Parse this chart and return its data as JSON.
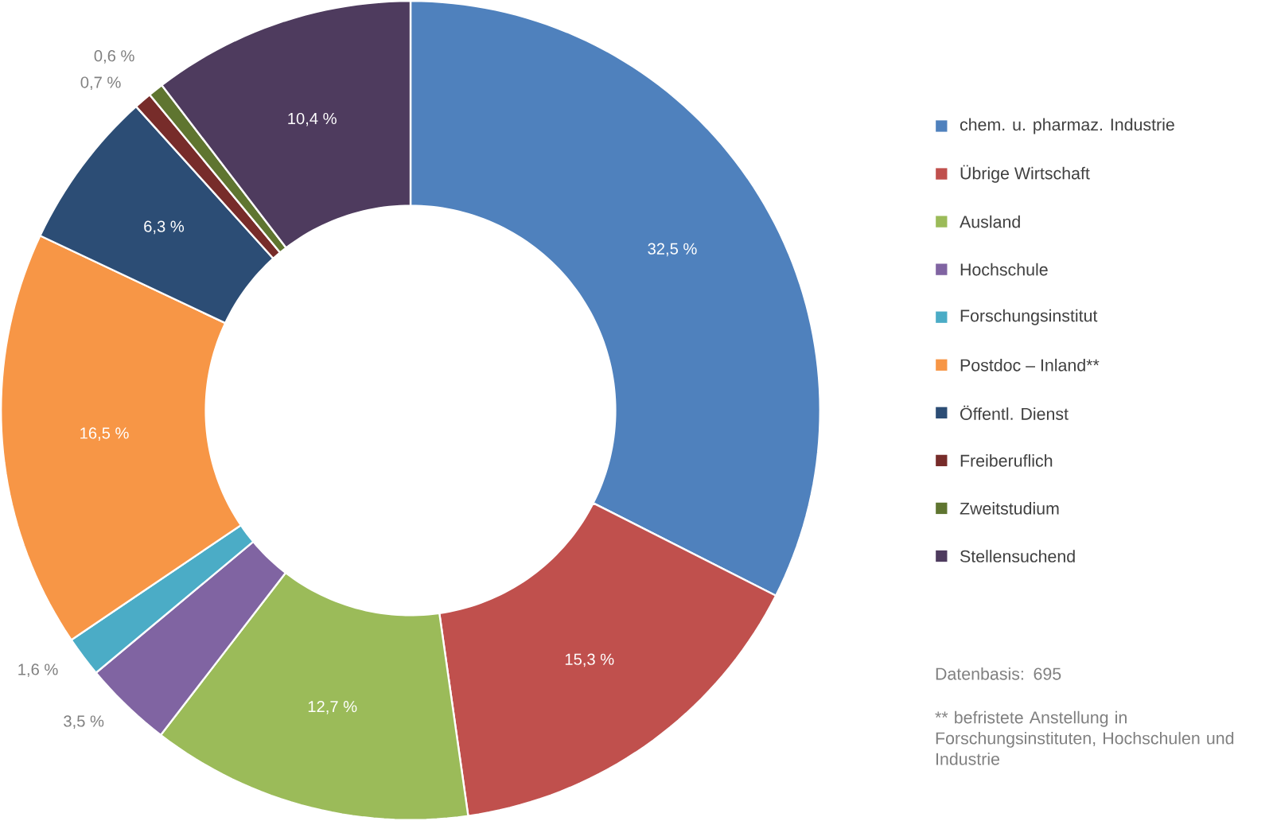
{
  "chart_data": {
    "type": "donut",
    "categories": [
      "chem. u. pharmaz. Industrie",
      "Übrige Wirtschaft",
      "Ausland",
      "Hochschule",
      "Forschungsinstitut",
      "Postdoc – Inland**",
      "Öffentl. Dienst",
      "Freiberuflich",
      "Zweitstudium",
      "Stellensuchend"
    ],
    "values": [
      32.5,
      15.3,
      12.7,
      3.5,
      1.6,
      16.5,
      6.3,
      0.7,
      0.6,
      10.4
    ],
    "colors": [
      "#4f81bd",
      "#c0504d",
      "#9bbb59",
      "#8064a2",
      "#4bacc6",
      "#f79646",
      "#2c4d75",
      "#772c2a",
      "#5f7530",
      "#4e3b5e"
    ],
    "value_labels": [
      "32,5 %",
      "15,3 %",
      "12,7 %",
      "3,5 %",
      "1,6 %",
      "16,5 %",
      "6,3 %",
      "0,7 %",
      "0,6 %",
      "10,4 %"
    ],
    "legend": "right",
    "annotations": [
      "Datenbasis: 695",
      "** befristete Anstellung in Forschungsinstituten, Hochschulen und Industrie"
    ]
  }
}
